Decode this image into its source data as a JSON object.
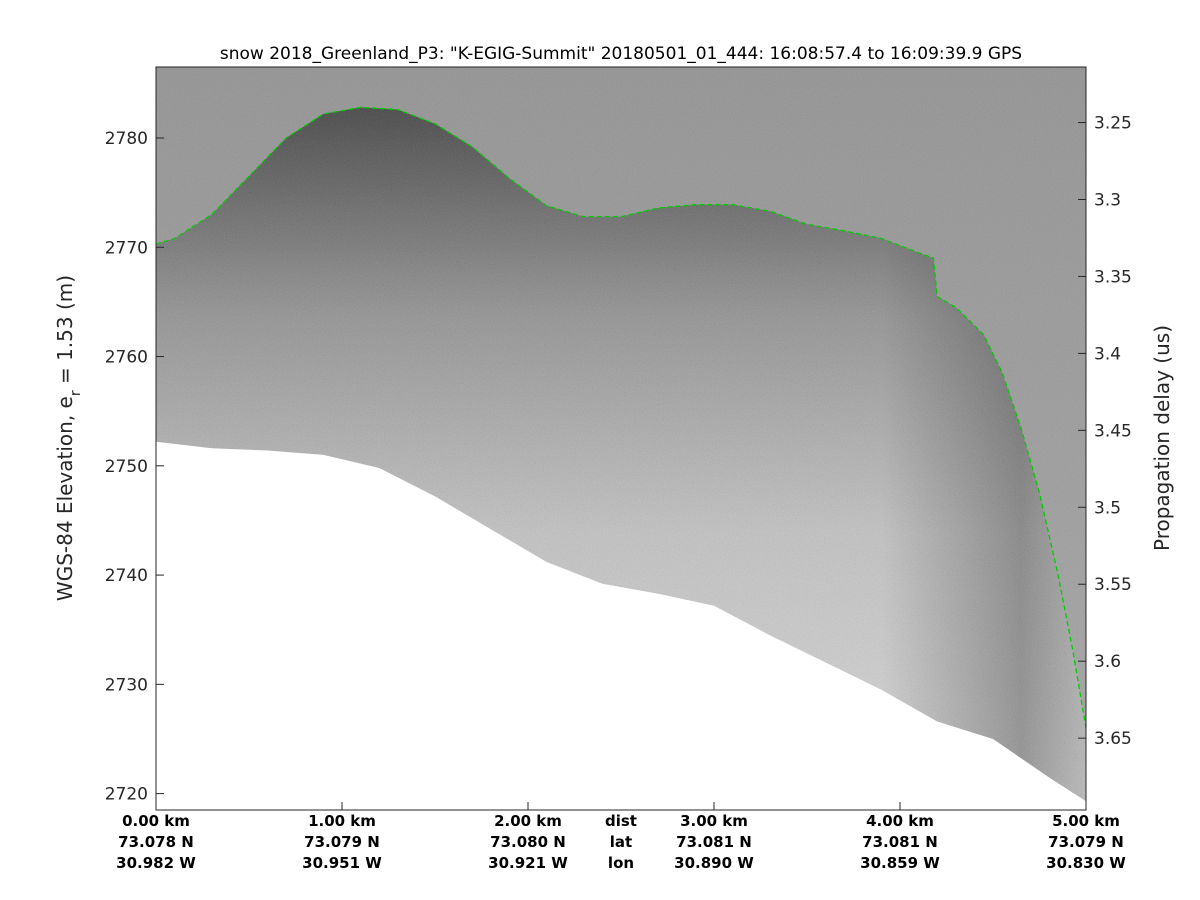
{
  "chart_data": {
    "type": "radar-echogram",
    "title": "snow 2018_Greenland_P3: \"K-EGIG-Summit\"  20180501_01_444: 16:08:57.4 to 16:09:39.9 GPS",
    "ylabel_left": "WGS-84 Elevation, e",
    "ylabel_left_sub": "r",
    "ylabel_left_tail": " = 1.53 (m)",
    "ylabel_right": "Propagation delay (us)",
    "ylim": [
      2718.5,
      2786.5
    ],
    "xlim_km": [
      0,
      5
    ],
    "y_ticks_left": [
      "2720",
      "2730",
      "2740",
      "2750",
      "2760",
      "2770",
      "2780"
    ],
    "y_ticks_left_values": [
      2720,
      2730,
      2740,
      2750,
      2760,
      2770,
      2780
    ],
    "y_ticks_right": [
      "3.25",
      "3.3",
      "3.35",
      "3.4",
      "3.45",
      "3.5",
      "3.55",
      "3.6",
      "3.65"
    ],
    "y_ticks_right_values": [
      3.25,
      3.3,
      3.35,
      3.4,
      3.45,
      3.5,
      3.55,
      3.6,
      3.65
    ],
    "right_axis_delay_at_top": 3.2139,
    "right_axis_delay_per_m": 0.0071,
    "x_rows": [
      {
        "label": "dist",
        "values": [
          "0.00 km",
          "1.00 km",
          "2.00 km",
          "3.00 km",
          "4.00 km",
          "5.00 km"
        ]
      },
      {
        "label": "lat",
        "values": [
          "73.078 N",
          "73.079 N",
          "73.080 N",
          "73.081 N",
          "73.081 N",
          "73.079 N"
        ]
      },
      {
        "label": "lon",
        "values": [
          "30.982 W",
          "30.951 W",
          "30.921 W",
          "30.890 W",
          "30.859 W",
          "30.830 W"
        ]
      }
    ],
    "x_tick_km": [
      0,
      1,
      2,
      3,
      4,
      5
    ],
    "x_row_label_km": 2.5,
    "surface": {
      "name": "surface",
      "color": "#00cc00",
      "style": "dashed",
      "x_km": [
        0,
        0.1,
        0.3,
        0.5,
        0.7,
        0.9,
        1.1,
        1.3,
        1.5,
        1.7,
        1.9,
        2.1,
        2.3,
        2.5,
        2.7,
        2.9,
        3.1,
        3.3,
        3.5,
        3.7,
        3.9,
        4.1,
        4.18,
        4.2,
        4.3,
        4.45,
        4.55,
        4.65,
        4.75,
        4.85,
        4.93,
        5.0
      ],
      "elev_m": [
        2770.3,
        2770.8,
        2773.0,
        2776.5,
        2780.0,
        2782.2,
        2782.8,
        2782.6,
        2781.3,
        2779.2,
        2776.3,
        2773.8,
        2772.8,
        2772.8,
        2773.6,
        2773.9,
        2773.9,
        2773.3,
        2772.1,
        2771.5,
        2770.8,
        2769.5,
        2769.0,
        2765.5,
        2764.5,
        2762.0,
        2758.5,
        2753.5,
        2747.5,
        2740.0,
        2733.0,
        2726.0
      ]
    },
    "noise_floor": {
      "x_km": [
        0,
        0.3,
        0.6,
        0.9,
        1.2,
        1.5,
        1.8,
        2.1,
        2.4,
        2.7,
        3.0,
        3.3,
        3.6,
        3.9,
        4.2,
        4.5,
        4.8,
        5.0
      ],
      "elev_m": [
        2752.2,
        2751.6,
        2751.4,
        2751.0,
        2749.8,
        2747.2,
        2744.2,
        2741.2,
        2739.2,
        2738.3,
        2737.2,
        2734.5,
        2732.0,
        2729.5,
        2726.6,
        2725.0,
        2721.5,
        2719.3
      ]
    },
    "grid": false,
    "legend": "none"
  },
  "colors": {
    "surface": "#00cc00",
    "text": "#262626",
    "frame": "#262626"
  }
}
